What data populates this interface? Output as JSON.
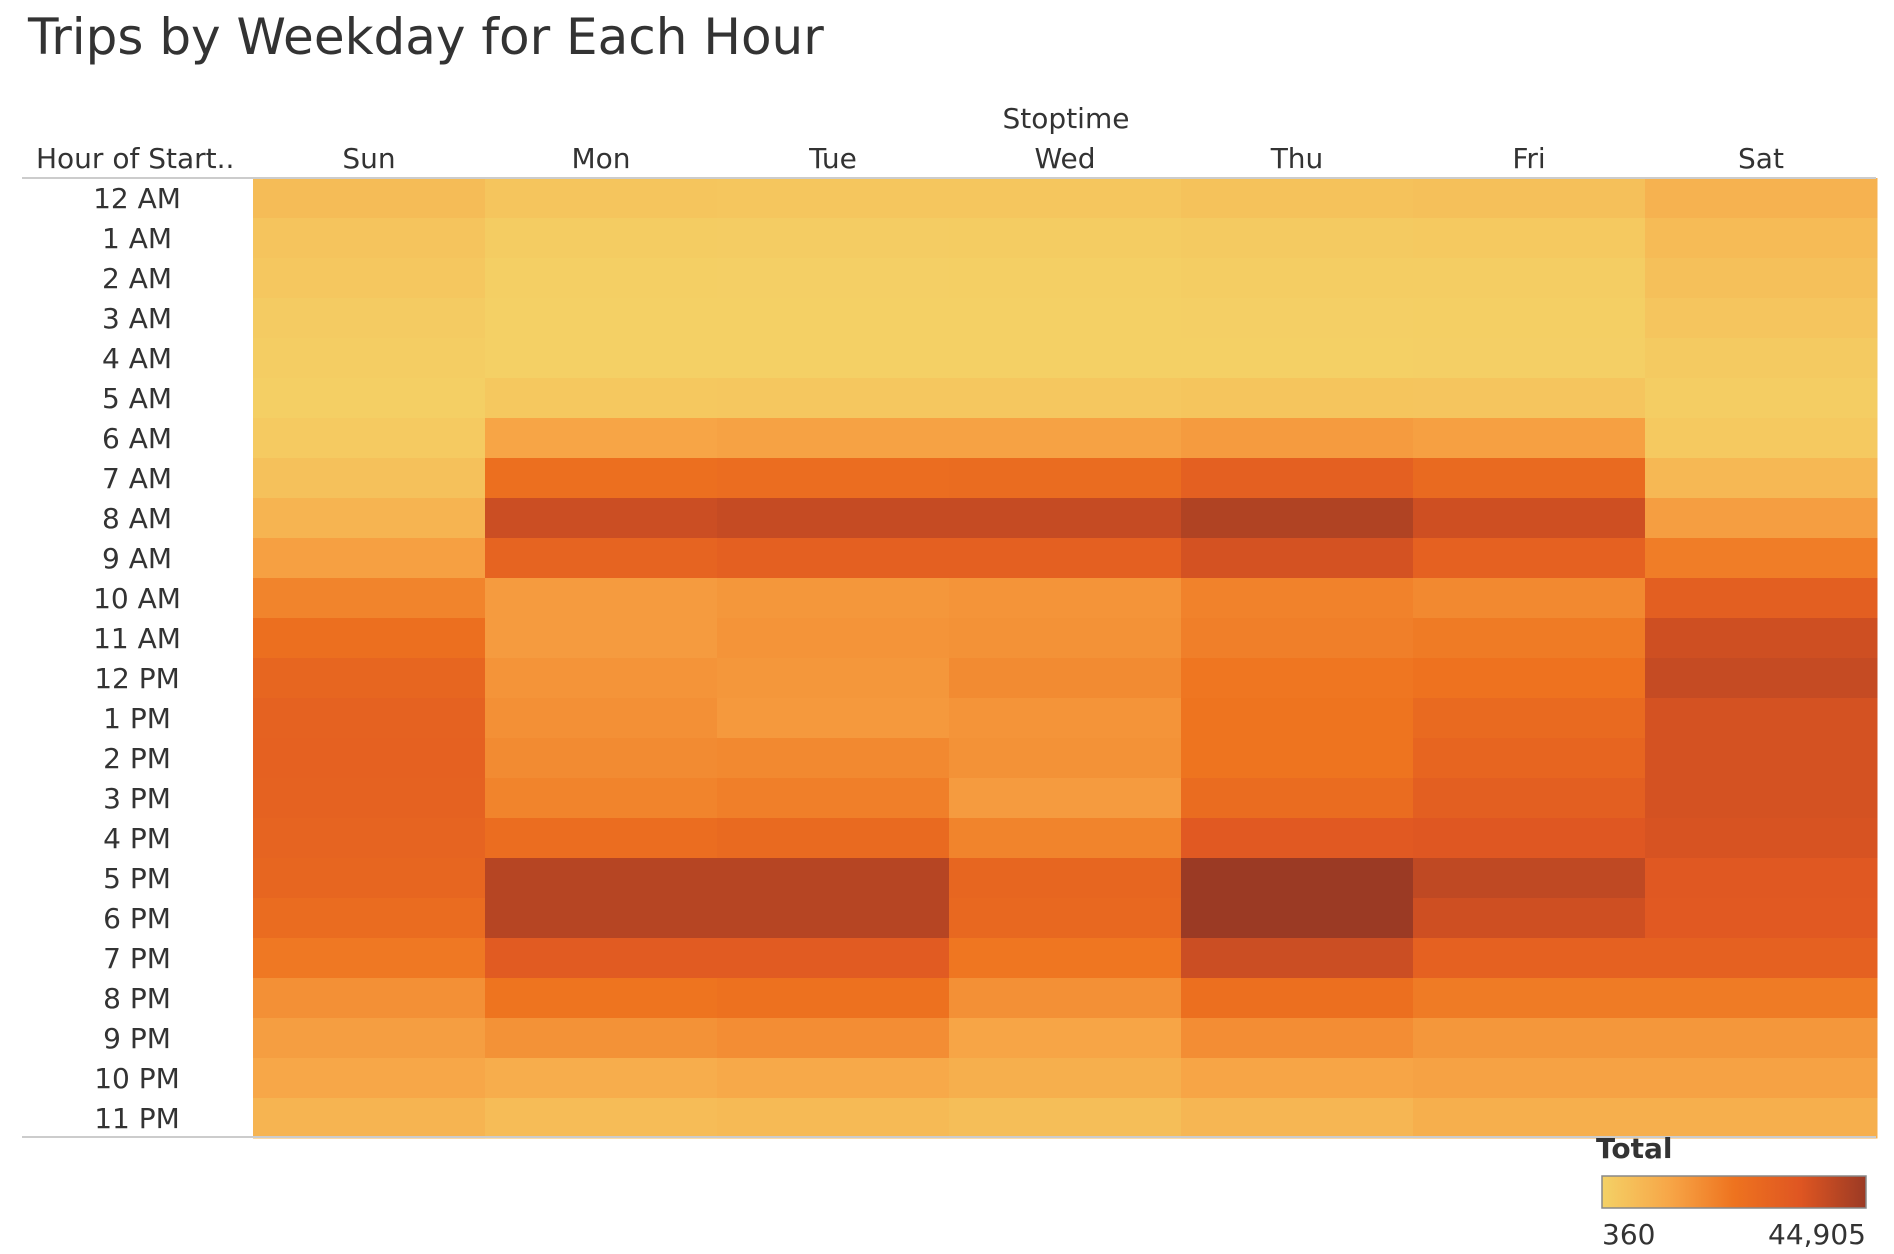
{
  "chart_data": {
    "type": "heatmap",
    "title": "Trips by Weekday for Each Hour",
    "column_header": "Stoptime",
    "row_header": "Hour of Start..",
    "x": [
      "Sun",
      "Mon",
      "Tue",
      "Wed",
      "Thu",
      "Fri",
      "Sat"
    ],
    "y": [
      "12 AM",
      "1 AM",
      "2 AM",
      "3 AM",
      "4 AM",
      "5 AM",
      "6 AM",
      "7 AM",
      "8 AM",
      "9 AM",
      "10 AM",
      "11 AM",
      "12 PM",
      "1 PM",
      "2 PM",
      "3 PM",
      "4 PM",
      "5 PM",
      "6 PM",
      "7 PM",
      "8 PM",
      "9 PM",
      "10 PM",
      "11 PM"
    ],
    "values": [
      [
        5800,
        3600,
        3300,
        3400,
        4300,
        4800,
        8500
      ],
      [
        3800,
        1800,
        1600,
        1700,
        2200,
        2500,
        6200
      ],
      [
        2900,
        1000,
        900,
        950,
        1300,
        1500,
        4800
      ],
      [
        2000,
        700,
        650,
        700,
        900,
        1000,
        3500
      ],
      [
        1300,
        600,
        550,
        600,
        700,
        800,
        2200
      ],
      [
        1000,
        2800,
        2900,
        3000,
        3600,
        3500,
        1400
      ],
      [
        2300,
        12000,
        12500,
        12500,
        14000,
        13000,
        2500
      ],
      [
        4500,
        24000,
        25000,
        25500,
        30000,
        26000,
        7000
      ],
      [
        8000,
        37000,
        38000,
        38000,
        41500,
        36500,
        13500
      ],
      [
        13000,
        28500,
        30000,
        30000,
        35500,
        29500,
        20500
      ],
      [
        19000,
        14000,
        15000,
        15500,
        19500,
        18000,
        30500
      ],
      [
        24000,
        14000,
        15500,
        16000,
        20000,
        21000,
        36500
      ],
      [
        27500,
        15500,
        15000,
        17500,
        22000,
        23000,
        38000
      ],
      [
        29000,
        16500,
        14500,
        15500,
        22500,
        26000,
        35500
      ],
      [
        29500,
        17500,
        18000,
        16000,
        22500,
        28000,
        35500
      ],
      [
        29000,
        19000,
        20000,
        14000,
        25500,
        30500,
        35500
      ],
      [
        28500,
        25000,
        26000,
        19000,
        32500,
        33500,
        35000
      ],
      [
        27500,
        40500,
        40500,
        27500,
        44905,
        39000,
        33000
      ],
      [
        25500,
        40500,
        40500,
        27000,
        44900,
        36500,
        32500
      ],
      [
        21500,
        32000,
        32000,
        22000,
        37000,
        29500,
        29500
      ],
      [
        16500,
        22500,
        23500,
        16500,
        24000,
        21000,
        21000
      ],
      [
        13500,
        16000,
        17000,
        12000,
        17000,
        15000,
        15000
      ],
      [
        11500,
        10000,
        11000,
        9500,
        12000,
        12500,
        12500
      ],
      [
        8000,
        6000,
        6500,
        5500,
        7500,
        9500,
        9500
      ]
    ],
    "color_scale": {
      "label": "Total",
      "min": 360,
      "max": 44905,
      "min_label": "360",
      "max_label": "44,905",
      "colors": [
        "#f4d166",
        "#f7a748",
        "#ee731f",
        "#df5622",
        "#9b3a24"
      ]
    },
    "legend_position": "bottom-right"
  }
}
